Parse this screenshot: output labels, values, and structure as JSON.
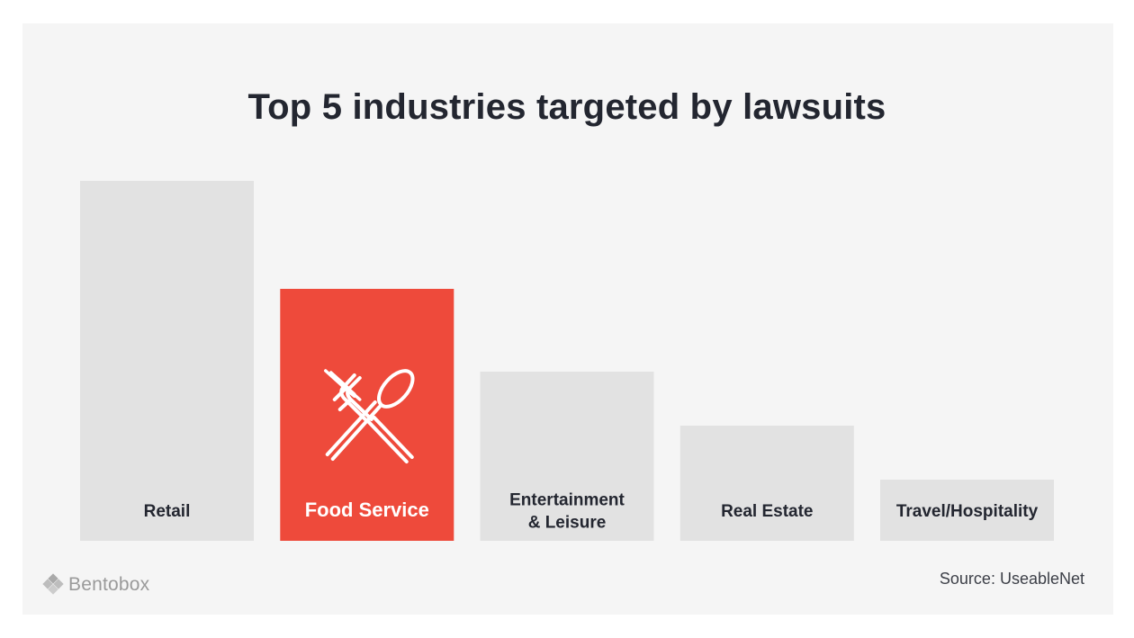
{
  "chart_data": {
    "type": "bar",
    "title": "Top 5 industries targeted by lawsuits",
    "categories": [
      "Retail",
      "Food Service",
      "Entertainment & Leisure",
      "Real Estate",
      "Travel/Hospitality"
    ],
    "label_lines": [
      [
        "Retail"
      ],
      [
        "Food Service"
      ],
      [
        "Entertainment",
        "& Leisure"
      ],
      [
        "Real Estate"
      ],
      [
        "Travel/Hospitality"
      ]
    ],
    "values": [
      100,
      70,
      47,
      32,
      17
    ],
    "value_unit": "relative share (no values shown on chart)",
    "highlight_index": 1,
    "highlight_icon": "fork-spoon-icon",
    "ylim": [
      0,
      100
    ],
    "xlabel": "",
    "ylabel": "",
    "grid": false,
    "legend": "none",
    "colors": {
      "bar": "#e2e2e2",
      "highlight": "#ee4a3b",
      "label": "#232630",
      "highlight_label": "#ffffff"
    }
  },
  "footer": {
    "source": "Source: UseableNet",
    "brand": "Bentobox",
    "brand_icon": "bentobox-logo-icon"
  }
}
